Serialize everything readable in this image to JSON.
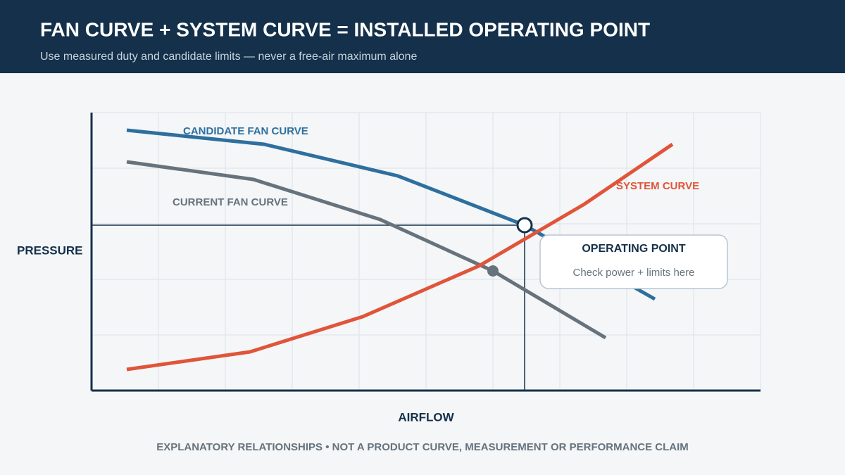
{
  "header": {
    "title": "FAN CURVE + SYSTEM CURVE = INSTALLED OPERATING POINT",
    "subtitle": "Use measured duty and candidate limits — never a free-air maximum alone"
  },
  "diagram": {
    "curves": {
      "candidate": "CANDIDATE FAN CURVE",
      "current": "CURRENT FAN CURVE",
      "system": "SYSTEM CURVE"
    },
    "axes": {
      "y": "PRESSURE",
      "x": "AIRFLOW"
    },
    "callout": {
      "title": "OPERATING POINT",
      "text": "Check power + limits here"
    }
  },
  "footer": "EXPLANATORY RELATIONSHIPS • NOT A PRODUCT CURVE, MEASUREMENT OR PERFORMANCE CLAIM"
}
